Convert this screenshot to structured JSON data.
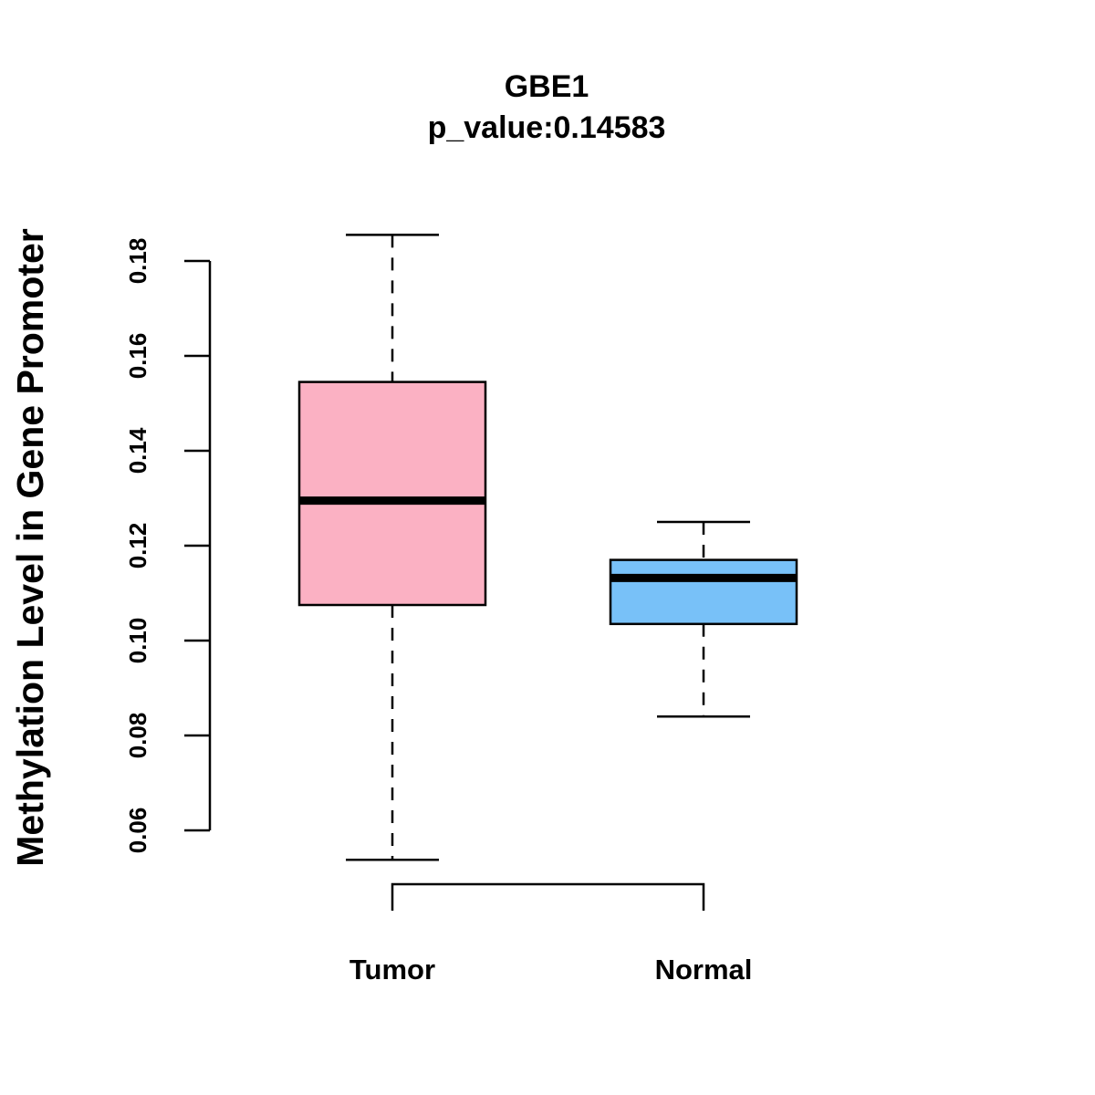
{
  "chart_data": {
    "type": "boxplot",
    "title": "GBE1",
    "subtitle": "p_value:0.14583",
    "ylabel": "Methylation Level in Gene Promoter",
    "xlabel": "",
    "ylim": [
      0.06,
      0.18
    ],
    "yticks": [
      0.06,
      0.08,
      0.1,
      0.12,
      0.14,
      0.16,
      0.18
    ],
    "ytick_labels": [
      "0.06",
      "0.08",
      "0.10",
      "0.12",
      "0.14",
      "0.16",
      "0.18"
    ],
    "categories": [
      "Tumor",
      "Normal"
    ],
    "series": [
      {
        "name": "Tumor",
        "min": 0.0538,
        "q1": 0.1075,
        "median": 0.1295,
        "q3": 0.1545,
        "max": 0.1855,
        "color": "#FBB1C3"
      },
      {
        "name": "Normal",
        "min": 0.084,
        "q1": 0.1035,
        "median": 0.1132,
        "q3": 0.117,
        "max": 0.125,
        "color": "#78C1F8"
      }
    ],
    "comparison_bracket": {
      "from": "Tumor",
      "to": "Normal"
    }
  }
}
